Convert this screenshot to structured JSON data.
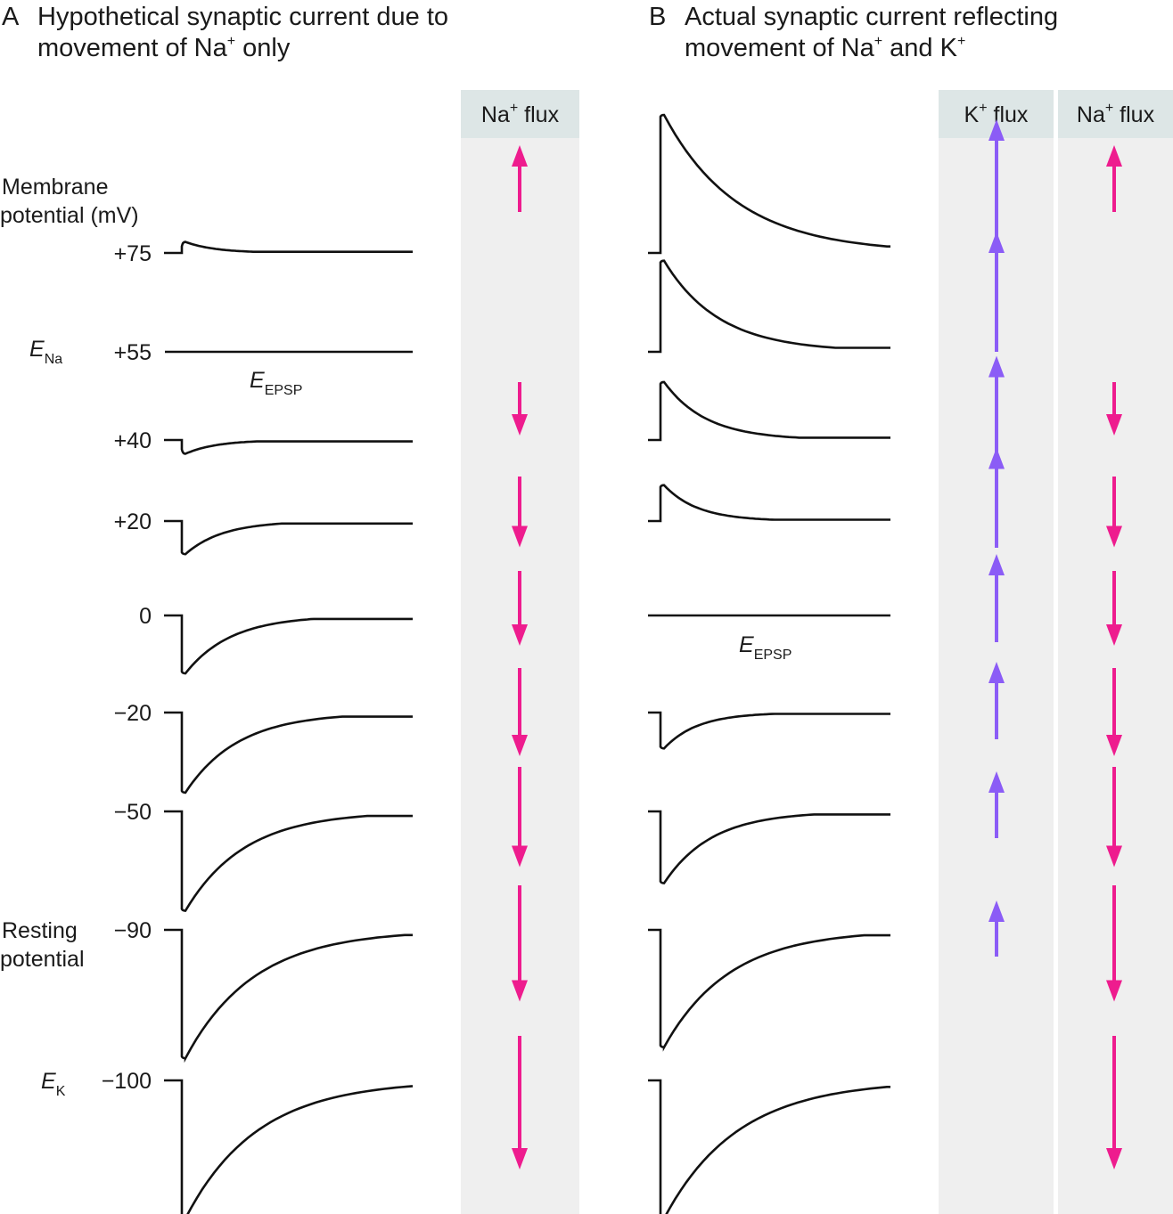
{
  "panel_a": {
    "letter": "A",
    "title_line1": "Hypothetical synaptic current due to",
    "title_line2_pre": "movement of Na",
    "title_line2_sup": "+",
    "title_line2_post": " only",
    "flux_header_base": "Na",
    "flux_header_sup": "+",
    "flux_header_post": " flux"
  },
  "panel_b": {
    "letter": "B",
    "title_line1": "Actual synaptic current reflecting",
    "title_line2_pre": "movement of Na",
    "title_line2_sup": "+",
    "title_line2_mid": " and K",
    "title_line2_sup2": "+",
    "k_header_base": "K",
    "k_header_sup": "+",
    "k_header_post": " flux",
    "na_header_base": "Na",
    "na_header_sup": "+",
    "na_header_post": " flux"
  },
  "axis": {
    "label_line1": "Membrane",
    "label_line2": "potential (mV)"
  },
  "annotations": {
    "e_na_main": "E",
    "e_na_sub": "Na",
    "e_k_main": "E",
    "e_k_sub": "K",
    "e_epsp_main": "E",
    "e_epsp_sub": "EPSP",
    "resting_line1": "Resting",
    "resting_line2": "potential"
  },
  "levels": [
    {
      "label": "+75",
      "mv": 75,
      "a_current": 0.08,
      "b_current": 1.0,
      "na_flux": 0.5,
      "k_flux": 1.0
    },
    {
      "label": "+55",
      "mv": 55,
      "a_current": 0,
      "b_current": 0.66,
      "na_flux": 0,
      "k_flux": 0.9
    },
    {
      "label": "+40",
      "mv": 40,
      "a_current": -0.1,
      "b_current": 0.42,
      "na_flux": -0.4,
      "k_flux": 0.83
    },
    {
      "label": "+20",
      "mv": 20,
      "a_current": -0.24,
      "b_current": 0.26,
      "na_flux": -0.53,
      "k_flux": 0.75
    },
    {
      "label": "0",
      "mv": 0,
      "a_current": -0.42,
      "b_current": 0,
      "na_flux": -0.56,
      "k_flux": 0.66
    },
    {
      "label": "−20",
      "mv": -20,
      "a_current": -0.58,
      "b_current": -0.26,
      "na_flux": -0.66,
      "k_flux": 0.58
    },
    {
      "label": "−50",
      "mv": -50,
      "a_current": -0.72,
      "b_current": -0.52,
      "na_flux": -0.75,
      "k_flux": 0.5
    },
    {
      "label": "−90",
      "mv": -90,
      "a_current": -0.93,
      "b_current": -0.85,
      "na_flux": -0.87,
      "k_flux": 0.42
    },
    {
      "label": "−100",
      "mv": -100,
      "a_current": -1.0,
      "b_current": -1.0,
      "na_flux": -1.0,
      "k_flux": 0
    }
  ],
  "colors": {
    "na_arrow": "#ee1c8e",
    "k_arrow": "#8b5cf6",
    "flux_column": "#efefef",
    "flux_header": "#dde6e6",
    "trace": "#111111"
  }
}
